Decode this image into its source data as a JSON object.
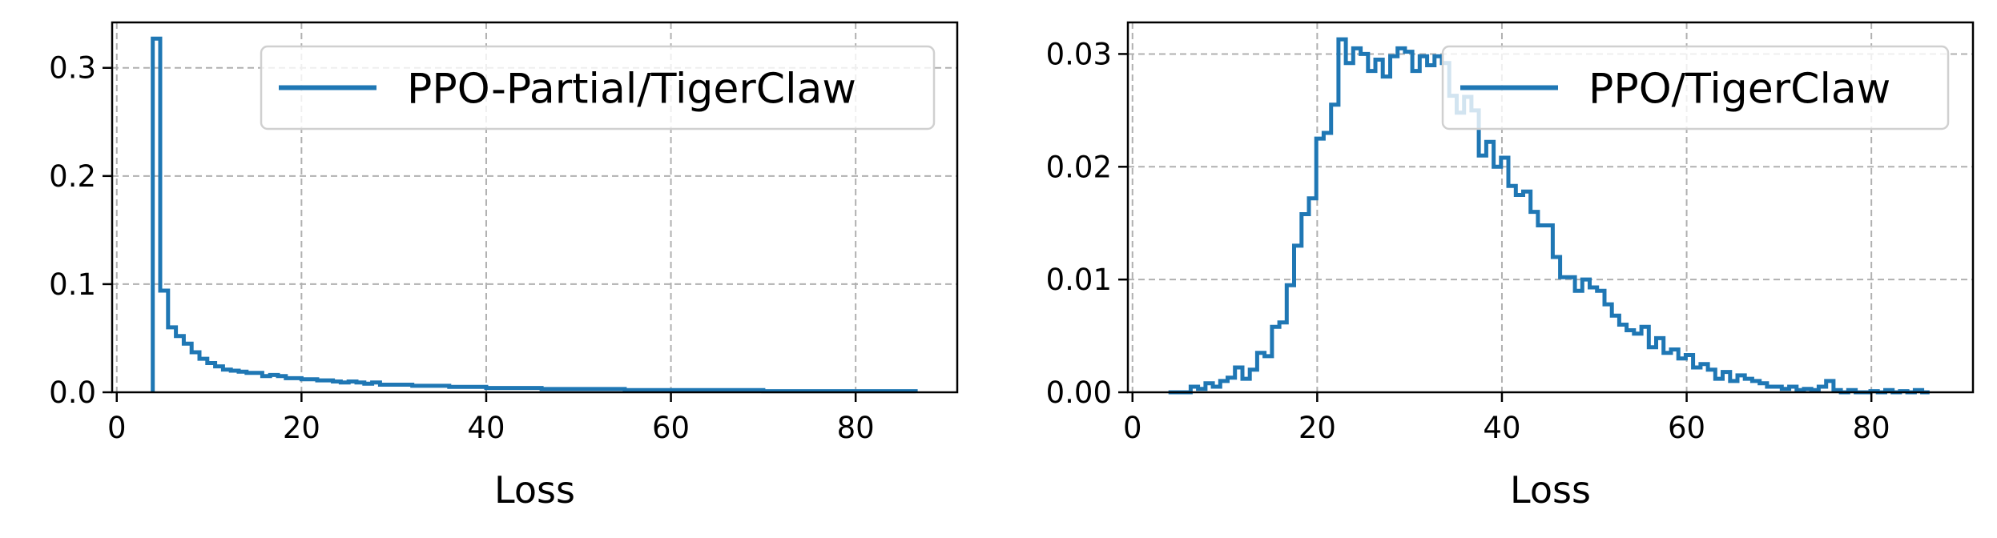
{
  "chart_data": [
    {
      "type": "step",
      "xlabel": "Loss",
      "ylabel": "",
      "xlim": [
        -0.5,
        91
      ],
      "ylim": [
        0,
        0.342
      ],
      "xticks": [
        0,
        20,
        40,
        60,
        80
      ],
      "xtick_labels": [
        "0",
        "20",
        "40",
        "60",
        "80"
      ],
      "yticks": [
        0.0,
        0.1,
        0.2,
        0.3
      ],
      "ytick_labels": [
        "0.0",
        "0.1",
        "0.2",
        "0.3"
      ],
      "grid": true,
      "legend_position": "top-right",
      "series": [
        {
          "name": "PPO-Partial/TigerClaw",
          "color": "#1f77b4",
          "bin_edges": [
            3.9,
            4.7,
            5.55,
            6.4,
            7.25,
            8.1,
            8.95,
            9.8,
            10.65,
            11.5,
            12.35,
            13.2,
            14.05,
            14.9,
            15.75,
            16.6,
            17.45,
            18.3,
            19.15,
            20.0,
            20.85,
            21.7,
            22.55,
            23.4,
            24.25,
            25.1,
            25.95,
            26.8,
            27.65,
            28.5,
            30,
            32,
            34,
            36,
            38,
            40,
            43,
            46,
            50,
            55,
            60,
            65,
            70,
            75,
            80,
            86.5
          ],
          "values": [
            0.327,
            0.094,
            0.06,
            0.052,
            0.045,
            0.037,
            0.031,
            0.027,
            0.024,
            0.021,
            0.02,
            0.019,
            0.018,
            0.018,
            0.015,
            0.016,
            0.015,
            0.013,
            0.013,
            0.012,
            0.012,
            0.011,
            0.011,
            0.01,
            0.009,
            0.01,
            0.009,
            0.008,
            0.009,
            0.007,
            0.007,
            0.006,
            0.006,
            0.005,
            0.005,
            0.004,
            0.004,
            0.003,
            0.003,
            0.002,
            0.002,
            0.002,
            0.001,
            0.001,
            0.001
          ]
        }
      ]
    },
    {
      "type": "step",
      "xlabel": "Loss",
      "ylabel": "",
      "xlim": [
        -0.5,
        91
      ],
      "ylim": [
        0,
        0.0328
      ],
      "xticks": [
        0,
        20,
        40,
        60,
        80
      ],
      "xtick_labels": [
        "0",
        "20",
        "40",
        "60",
        "80"
      ],
      "yticks": [
        0.0,
        0.01,
        0.02,
        0.03
      ],
      "ytick_labels": [
        "0.00",
        "0.01",
        "0.02",
        "0.03"
      ],
      "grid": true,
      "legend_position": "top-right",
      "series": [
        {
          "name": "PPO/TigerClaw",
          "color": "#1f77b4",
          "bin_edges": [
            3.9,
            4.7,
            5.5,
            6.3,
            7.1,
            7.9,
            8.7,
            9.5,
            10.3,
            11.1,
            11.9,
            12.7,
            13.5,
            14.3,
            15.1,
            15.9,
            16.7,
            17.5,
            18.3,
            19.1,
            19.9,
            20.7,
            21.5,
            22.3,
            23.1,
            23.9,
            24.7,
            25.5,
            26.3,
            27.1,
            27.9,
            28.7,
            29.5,
            30.3,
            31.1,
            31.9,
            32.7,
            33.5,
            34.3,
            35.1,
            35.9,
            36.7,
            37.5,
            38.3,
            39.1,
            39.9,
            40.7,
            41.5,
            42.3,
            43.1,
            43.9,
            44.7,
            45.5,
            46.3,
            47.1,
            47.9,
            48.7,
            49.5,
            50.3,
            51.1,
            51.9,
            52.7,
            53.5,
            54.3,
            55.1,
            55.9,
            56.7,
            57.5,
            58.3,
            59.1,
            59.9,
            60.7,
            61.5,
            62.3,
            63.1,
            63.9,
            64.7,
            65.5,
            66.3,
            67.1,
            67.9,
            68.7,
            69.5,
            70.3,
            71.1,
            71.9,
            72.7,
            73.5,
            74.3,
            75.1,
            75.9,
            76.7,
            77.5,
            78.3,
            79.1,
            79.9,
            80.7,
            81.5,
            82.3,
            83.1,
            83.9,
            84.7,
            85.5,
            86.3
          ],
          "values": [
            0.0,
            0.0,
            0.0,
            0.0005,
            0.0003,
            0.0008,
            0.0005,
            0.001,
            0.0013,
            0.0022,
            0.0012,
            0.002,
            0.0035,
            0.0032,
            0.0058,
            0.0062,
            0.0095,
            0.013,
            0.0158,
            0.0172,
            0.0225,
            0.023,
            0.0255,
            0.0313,
            0.0292,
            0.0305,
            0.03,
            0.0285,
            0.0295,
            0.028,
            0.0298,
            0.0305,
            0.0302,
            0.0285,
            0.0298,
            0.029,
            0.0298,
            0.0292,
            0.0263,
            0.0248,
            0.0262,
            0.025,
            0.021,
            0.0222,
            0.02,
            0.0208,
            0.0183,
            0.0175,
            0.0178,
            0.016,
            0.0148,
            0.0148,
            0.012,
            0.0102,
            0.0102,
            0.009,
            0.01,
            0.0093,
            0.009,
            0.0078,
            0.0068,
            0.006,
            0.0055,
            0.0052,
            0.0058,
            0.004,
            0.0048,
            0.0035,
            0.0038,
            0.003,
            0.0033,
            0.0022,
            0.0025,
            0.002,
            0.0012,
            0.0018,
            0.001,
            0.0015,
            0.0012,
            0.001,
            0.0008,
            0.0005,
            0.0005,
            0.0003,
            0.0005,
            0.0002,
            0.0003,
            0.0002,
            0.0005,
            0.001,
            0.0002,
            0.0,
            0.0002,
            0.0,
            0.0,
            0.0001,
            0.0,
            0.0002,
            0.0,
            0.0001,
            0.0,
            0.0002,
            0.0
          ]
        }
      ]
    }
  ]
}
